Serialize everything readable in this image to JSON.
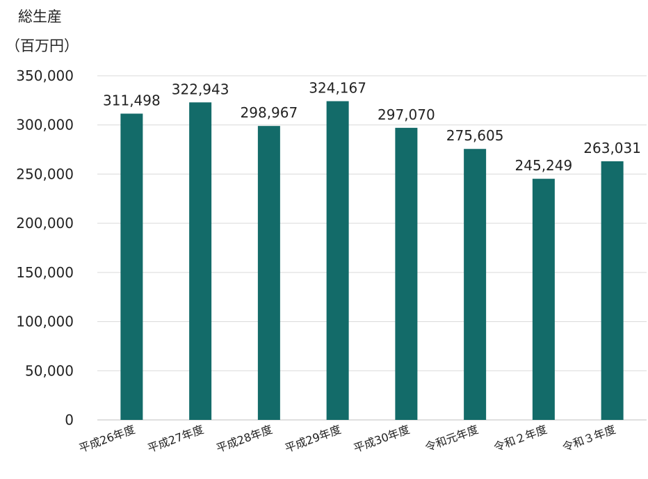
{
  "chart_data": {
    "type": "bar",
    "ylabel_line1": "総生産",
    "ylabel_line2": "（百万円）",
    "categories": [
      "平成26年度",
      "平成27年度",
      "平成28年度",
      "平成29年度",
      "平成30年度",
      "令和元年度",
      "令和２年度",
      "令和３年度"
    ],
    "values": [
      311498,
      322943,
      298967,
      324167,
      297070,
      275605,
      245249,
      263031
    ],
    "value_labels": [
      "311,498",
      "322,943",
      "298,967",
      "324,167",
      "297,070",
      "275,605",
      "245,249",
      "263,031"
    ],
    "yticks": [
      "0",
      "50,000",
      "100,000",
      "150,000",
      "200,000",
      "250,000",
      "300,000",
      "350,000"
    ],
    "ylim": [
      0,
      350000
    ],
    "grid": true,
    "bar_color": "#136b69",
    "grid_color": "#d9d9d9"
  }
}
